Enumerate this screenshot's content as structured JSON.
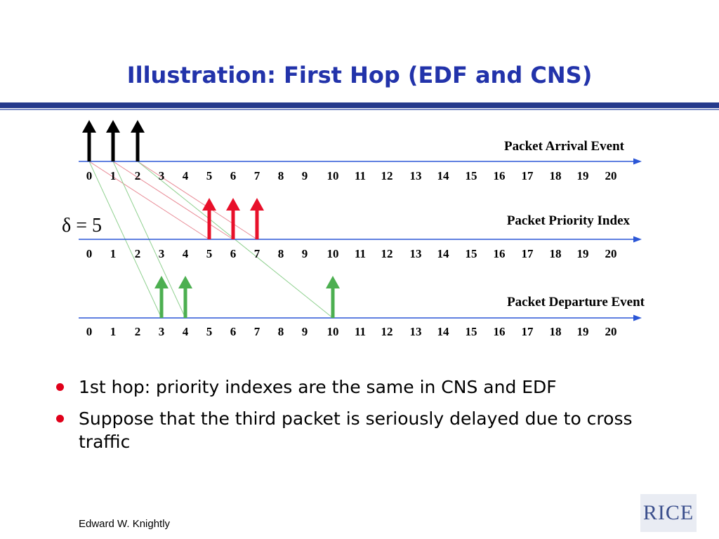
{
  "slide": {
    "title": "Illustration: First Hop (EDF and CNS)",
    "footer": "Edward W. Knightly",
    "logo_text": "RICE"
  },
  "diagram": {
    "delta_label": "δ = 5",
    "ticks": [
      "0",
      "1",
      "2",
      "3",
      "4",
      "5",
      "6",
      "7",
      "8",
      "9",
      "10",
      "11",
      "12",
      "13",
      "14",
      "15",
      "16",
      "17",
      "18",
      "19",
      "20"
    ],
    "timelines": [
      {
        "label": "Packet Arrival Event",
        "events": [
          0,
          1,
          2
        ],
        "color": "#000000"
      },
      {
        "label": "Packet Priority Index",
        "events": [
          5,
          6,
          7
        ],
        "color": "#e8102a"
      },
      {
        "label": "Packet Departure Event",
        "events": [
          3,
          4,
          10
        ],
        "color": "#4caf50"
      }
    ],
    "links": [
      {
        "from": 0,
        "to": 5,
        "target": "priority",
        "color": "#e88a95"
      },
      {
        "from": 1,
        "to": 6,
        "target": "priority",
        "color": "#e88a95"
      },
      {
        "from": 2,
        "to": 7,
        "target": "priority",
        "color": "#e88a95"
      },
      {
        "from": 0,
        "to": 3,
        "target": "departure",
        "color": "#8fd08f"
      },
      {
        "from": 1,
        "to": 4,
        "target": "departure",
        "color": "#8fd08f"
      },
      {
        "from": 2,
        "to": 10,
        "target": "departure",
        "color": "#8fd08f"
      }
    ],
    "axis_color": "#2b56d6"
  },
  "bullets": [
    "1st hop: priority indexes are the same in CNS and EDF",
    "Suppose that the third packet is seriously delayed due to cross traffic"
  ]
}
